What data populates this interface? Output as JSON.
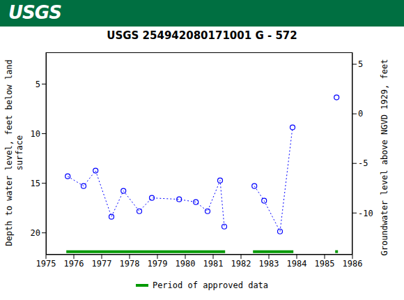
{
  "header": {
    "logo": "USGS"
  },
  "chart_data": {
    "type": "line",
    "title": "USGS 254942080171001 G  - 572",
    "y_label": "Depth to water level, feet below land surface",
    "y2_label": "Groundwater level above NGVD 1929, feet",
    "x": [
      1975.78,
      1976.35,
      1976.78,
      1977.35,
      1977.78,
      1978.35,
      1978.8,
      1979.78,
      1980.38,
      1980.8,
      1981.25,
      1981.4,
      1982.0,
      1982.48,
      1982.83,
      1983.4,
      1983.85,
      1984.6,
      1985.43
    ],
    "values": [
      14.3,
      15.28,
      13.73,
      18.38,
      15.77,
      17.82,
      16.48,
      16.62,
      16.9,
      17.82,
      14.72,
      19.37,
      null,
      15.28,
      16.76,
      19.86,
      9.37,
      null,
      6.34
    ],
    "color": "#0000ff",
    "marker": "circle",
    "line_style": "dotted",
    "xlim": [
      1975,
      1986
    ],
    "xticks": [
      1975,
      1976,
      1977,
      1978,
      1979,
      1980,
      1981,
      1982,
      1983,
      1984,
      1985,
      1986
    ],
    "ylim": [
      22.2,
      1.8
    ],
    "yticks": [
      5,
      10,
      15,
      20
    ],
    "y2lim": [
      -14.2,
      6.2
    ],
    "y2ticks": [
      -10,
      -5,
      0,
      5
    ],
    "periods": {
      "name": "Period of approved data",
      "color": "#009900",
      "ranges": [
        [
          1975.73,
          1981.43
        ],
        [
          1982.43,
          1983.88
        ],
        [
          1985.38,
          1985.48
        ]
      ]
    }
  }
}
